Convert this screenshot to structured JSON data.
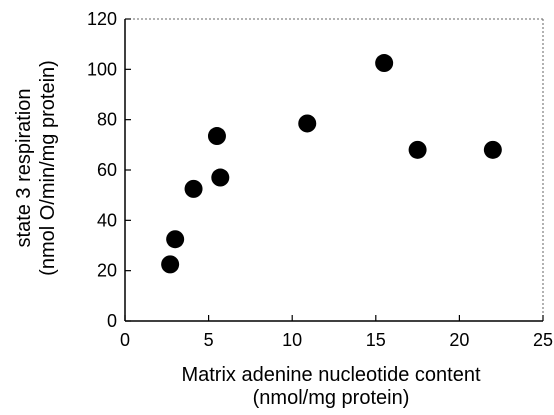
{
  "chart_data": {
    "type": "scatter",
    "xlabel": [
      "Matrix adenine nucleotide content",
      "(nmol/mg protein)"
    ],
    "ylabel": [
      "state 3 respiration",
      "(nmol O/min/mg protein)"
    ],
    "xlim": [
      0,
      25
    ],
    "ylim": [
      0,
      120
    ],
    "xticks": [
      0,
      5,
      10,
      15,
      20,
      25
    ],
    "yticks": [
      0,
      20,
      40,
      60,
      80,
      100,
      120
    ],
    "grid": false,
    "marker_color": "#000000",
    "points": [
      {
        "x": 2.7,
        "y": 22.5
      },
      {
        "x": 3.0,
        "y": 32.5
      },
      {
        "x": 4.1,
        "y": 52.5
      },
      {
        "x": 5.5,
        "y": 73.5
      },
      {
        "x": 5.7,
        "y": 57.0
      },
      {
        "x": 10.9,
        "y": 78.5
      },
      {
        "x": 15.5,
        "y": 102.5
      },
      {
        "x": 17.5,
        "y": 68.0
      },
      {
        "x": 22.0,
        "y": 68.0
      }
    ]
  }
}
